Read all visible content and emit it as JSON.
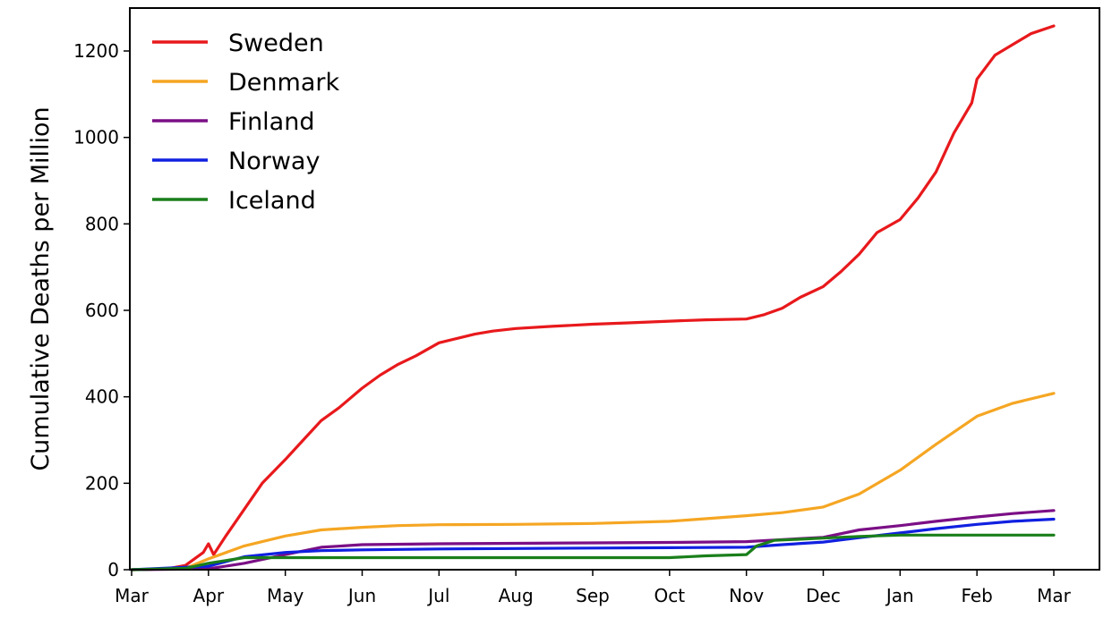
{
  "chart_data": {
    "type": "line",
    "title": "",
    "xlabel": "",
    "ylabel": "Cumulative Deaths per Million",
    "x_ticks": [
      "Mar",
      "Apr",
      "May",
      "Jun",
      "Jul",
      "Aug",
      "Sep",
      "Oct",
      "Nov",
      "Dec",
      "Jan",
      "Feb",
      "Mar"
    ],
    "y_ticks": [
      0,
      200,
      400,
      600,
      800,
      1000,
      1200
    ],
    "ylim": [
      0,
      1300
    ],
    "legend_position": "top-left",
    "grid": false,
    "series": [
      {
        "name": "Sweden",
        "color": "#e8191c",
        "points": [
          [
            "Mar",
            0
          ],
          [
            "Mar 15",
            2
          ],
          [
            "Mar 22",
            10
          ],
          [
            "Mar 29",
            40
          ],
          [
            "Apr",
            60
          ],
          [
            "Apr 3",
            35
          ],
          [
            "Apr 8",
            80
          ],
          [
            "Apr 15",
            140
          ],
          [
            "Apr 22",
            200
          ],
          [
            "May",
            255
          ],
          [
            "May 8",
            300
          ],
          [
            "May 15",
            345
          ],
          [
            "May 22",
            375
          ],
          [
            "Jun",
            420
          ],
          [
            "Jun 8",
            450
          ],
          [
            "Jun 15",
            475
          ],
          [
            "Jun 22",
            495
          ],
          [
            "Jul",
            525
          ],
          [
            "Jul 8",
            535
          ],
          [
            "Jul 15",
            545
          ],
          [
            "Jul 22",
            552
          ],
          [
            "Aug",
            558
          ],
          [
            "Aug 15",
            563
          ],
          [
            "Sep",
            568
          ],
          [
            "Sep 15",
            571
          ],
          [
            "Oct",
            575
          ],
          [
            "Oct 15",
            578
          ],
          [
            "Nov",
            580
          ],
          [
            "Nov 8",
            590
          ],
          [
            "Nov 15",
            605
          ],
          [
            "Nov 22",
            630
          ],
          [
            "Dec",
            655
          ],
          [
            "Dec 8",
            690
          ],
          [
            "Dec 15",
            730
          ],
          [
            "Dec 22",
            780
          ],
          [
            "Jan",
            810
          ],
          [
            "Jan 8",
            860
          ],
          [
            "Jan 15",
            920
          ],
          [
            "Jan 22",
            1010
          ],
          [
            "Jan 29",
            1080
          ],
          [
            "Feb",
            1135
          ],
          [
            "Feb 8",
            1190
          ],
          [
            "Feb 15",
            1215
          ],
          [
            "Feb 22",
            1240
          ],
          [
            "Mar",
            1258
          ]
        ]
      },
      {
        "name": "Denmark",
        "color": "#f5a623",
        "points": [
          [
            "Mar",
            0
          ],
          [
            "Mar 22",
            3
          ],
          [
            "Apr",
            25
          ],
          [
            "Apr 15",
            55
          ],
          [
            "May",
            78
          ],
          [
            "May 15",
            92
          ],
          [
            "Jun",
            98
          ],
          [
            "Jun 15",
            102
          ],
          [
            "Jul",
            104
          ],
          [
            "Aug",
            105
          ],
          [
            "Sep",
            107
          ],
          [
            "Oct",
            112
          ],
          [
            "Oct 15",
            118
          ],
          [
            "Nov",
            125
          ],
          [
            "Nov 15",
            132
          ],
          [
            "Dec",
            145
          ],
          [
            "Dec 15",
            175
          ],
          [
            "Jan",
            230
          ],
          [
            "Jan 15",
            290
          ],
          [
            "Feb",
            355
          ],
          [
            "Feb 15",
            385
          ],
          [
            "Mar",
            408
          ]
        ]
      },
      {
        "name": "Finland",
        "color": "#7b0f86",
        "points": [
          [
            "Mar",
            0
          ],
          [
            "Apr",
            2
          ],
          [
            "Apr 15",
            15
          ],
          [
            "May",
            35
          ],
          [
            "May 15",
            52
          ],
          [
            "Jun",
            58
          ],
          [
            "Jul",
            60
          ],
          [
            "Aug",
            61
          ],
          [
            "Sep",
            62
          ],
          [
            "Oct",
            63
          ],
          [
            "Nov",
            65
          ],
          [
            "Dec",
            75
          ],
          [
            "Dec 15",
            92
          ],
          [
            "Jan",
            102
          ],
          [
            "Jan 15",
            112
          ],
          [
            "Feb",
            122
          ],
          [
            "Feb 15",
            130
          ],
          [
            "Mar",
            137
          ]
        ]
      },
      {
        "name": "Norway",
        "color": "#1020e0",
        "points": [
          [
            "Mar",
            0
          ],
          [
            "Apr",
            8
          ],
          [
            "Apr 15",
            30
          ],
          [
            "May",
            40
          ],
          [
            "May 15",
            44
          ],
          [
            "Jun",
            46
          ],
          [
            "Jul",
            48
          ],
          [
            "Aug",
            49
          ],
          [
            "Sep",
            50
          ],
          [
            "Oct",
            51
          ],
          [
            "Nov",
            52
          ],
          [
            "Nov 15",
            58
          ],
          [
            "Dec",
            64
          ],
          [
            "Dec 15",
            74
          ],
          [
            "Jan",
            85
          ],
          [
            "Jan 15",
            95
          ],
          [
            "Feb",
            105
          ],
          [
            "Feb 15",
            112
          ],
          [
            "Mar",
            117
          ]
        ]
      },
      {
        "name": "Iceland",
        "color": "#1a7f1a",
        "points": [
          [
            "Mar",
            0
          ],
          [
            "Mar 22",
            3
          ],
          [
            "Apr",
            15
          ],
          [
            "Apr 15",
            28
          ],
          [
            "May",
            28
          ],
          [
            "Oct",
            28
          ],
          [
            "Oct 15",
            32
          ],
          [
            "Nov",
            35
          ],
          [
            "Nov 5",
            55
          ],
          [
            "Nov 12",
            68
          ],
          [
            "Nov 20",
            70
          ],
          [
            "Dec",
            73
          ],
          [
            "Dec 15",
            77
          ],
          [
            "Jan",
            80
          ],
          [
            "Mar",
            80
          ]
        ]
      }
    ]
  }
}
